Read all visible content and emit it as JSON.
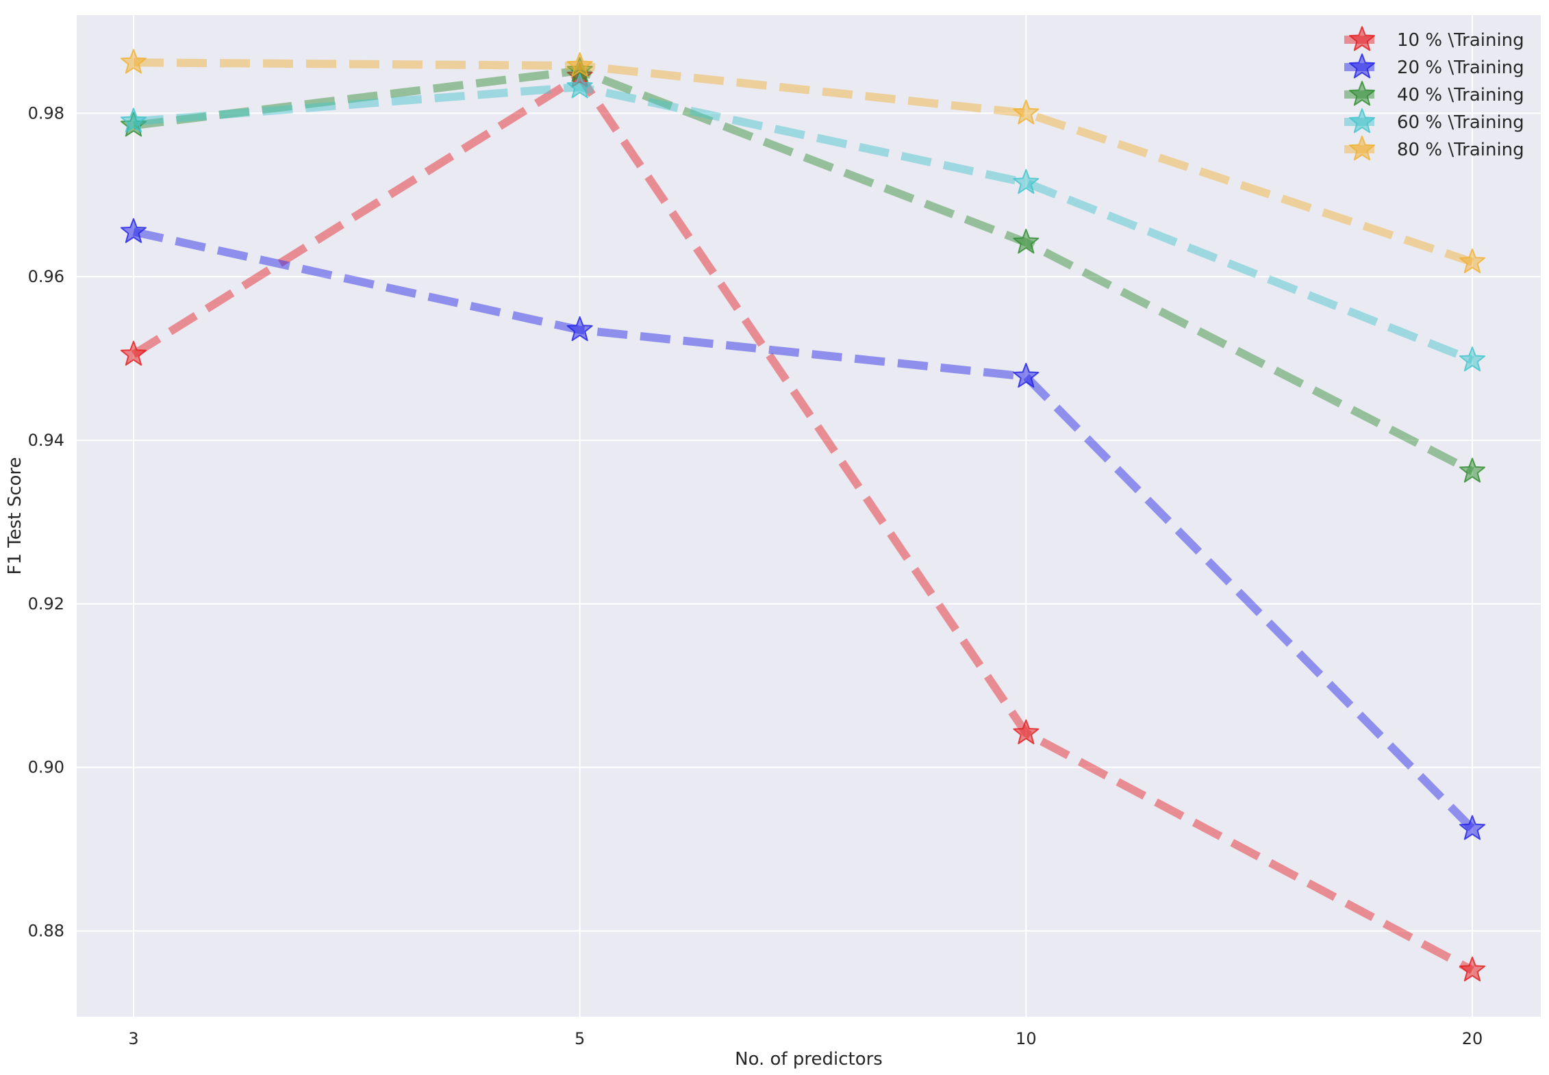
{
  "chart_data": {
    "type": "line",
    "title": "",
    "xlabel": "No. of predictors",
    "ylabel": "F1 Test Score",
    "categories": [
      "3",
      "5",
      "10",
      "20"
    ],
    "ylim": [
      0.8695,
      0.992
    ],
    "yticks": [
      0.88,
      0.9,
      0.92,
      0.94,
      0.96,
      0.98
    ],
    "ytick_labels": [
      "0.88",
      "0.90",
      "0.92",
      "0.94",
      "0.96",
      "0.98"
    ],
    "grid": true,
    "legend_position": "top-right",
    "background": "#eaeaf2",
    "line_style": "dashed",
    "marker": "star",
    "series": [
      {
        "name": "10 % \\Training",
        "color": "#e41a1c",
        "values": [
          0.9505,
          0.9845,
          0.9042,
          0.8752
        ]
      },
      {
        "name": "20 % \\Training",
        "color": "#1f1fe6",
        "values": [
          0.9655,
          0.9535,
          0.9478,
          0.8925
        ]
      },
      {
        "name": "40 % \\Training",
        "color": "#2e8b2e",
        "values": [
          0.9785,
          0.9852,
          0.9642,
          0.9362
        ]
      },
      {
        "name": "60 % \\Training",
        "color": "#40c4cc",
        "values": [
          0.979,
          0.9832,
          0.9715,
          0.9498
        ]
      },
      {
        "name": "80 % \\Training",
        "color": "#f0b030",
        "values": [
          0.9862,
          0.9858,
          0.98,
          0.9618
        ]
      }
    ]
  }
}
